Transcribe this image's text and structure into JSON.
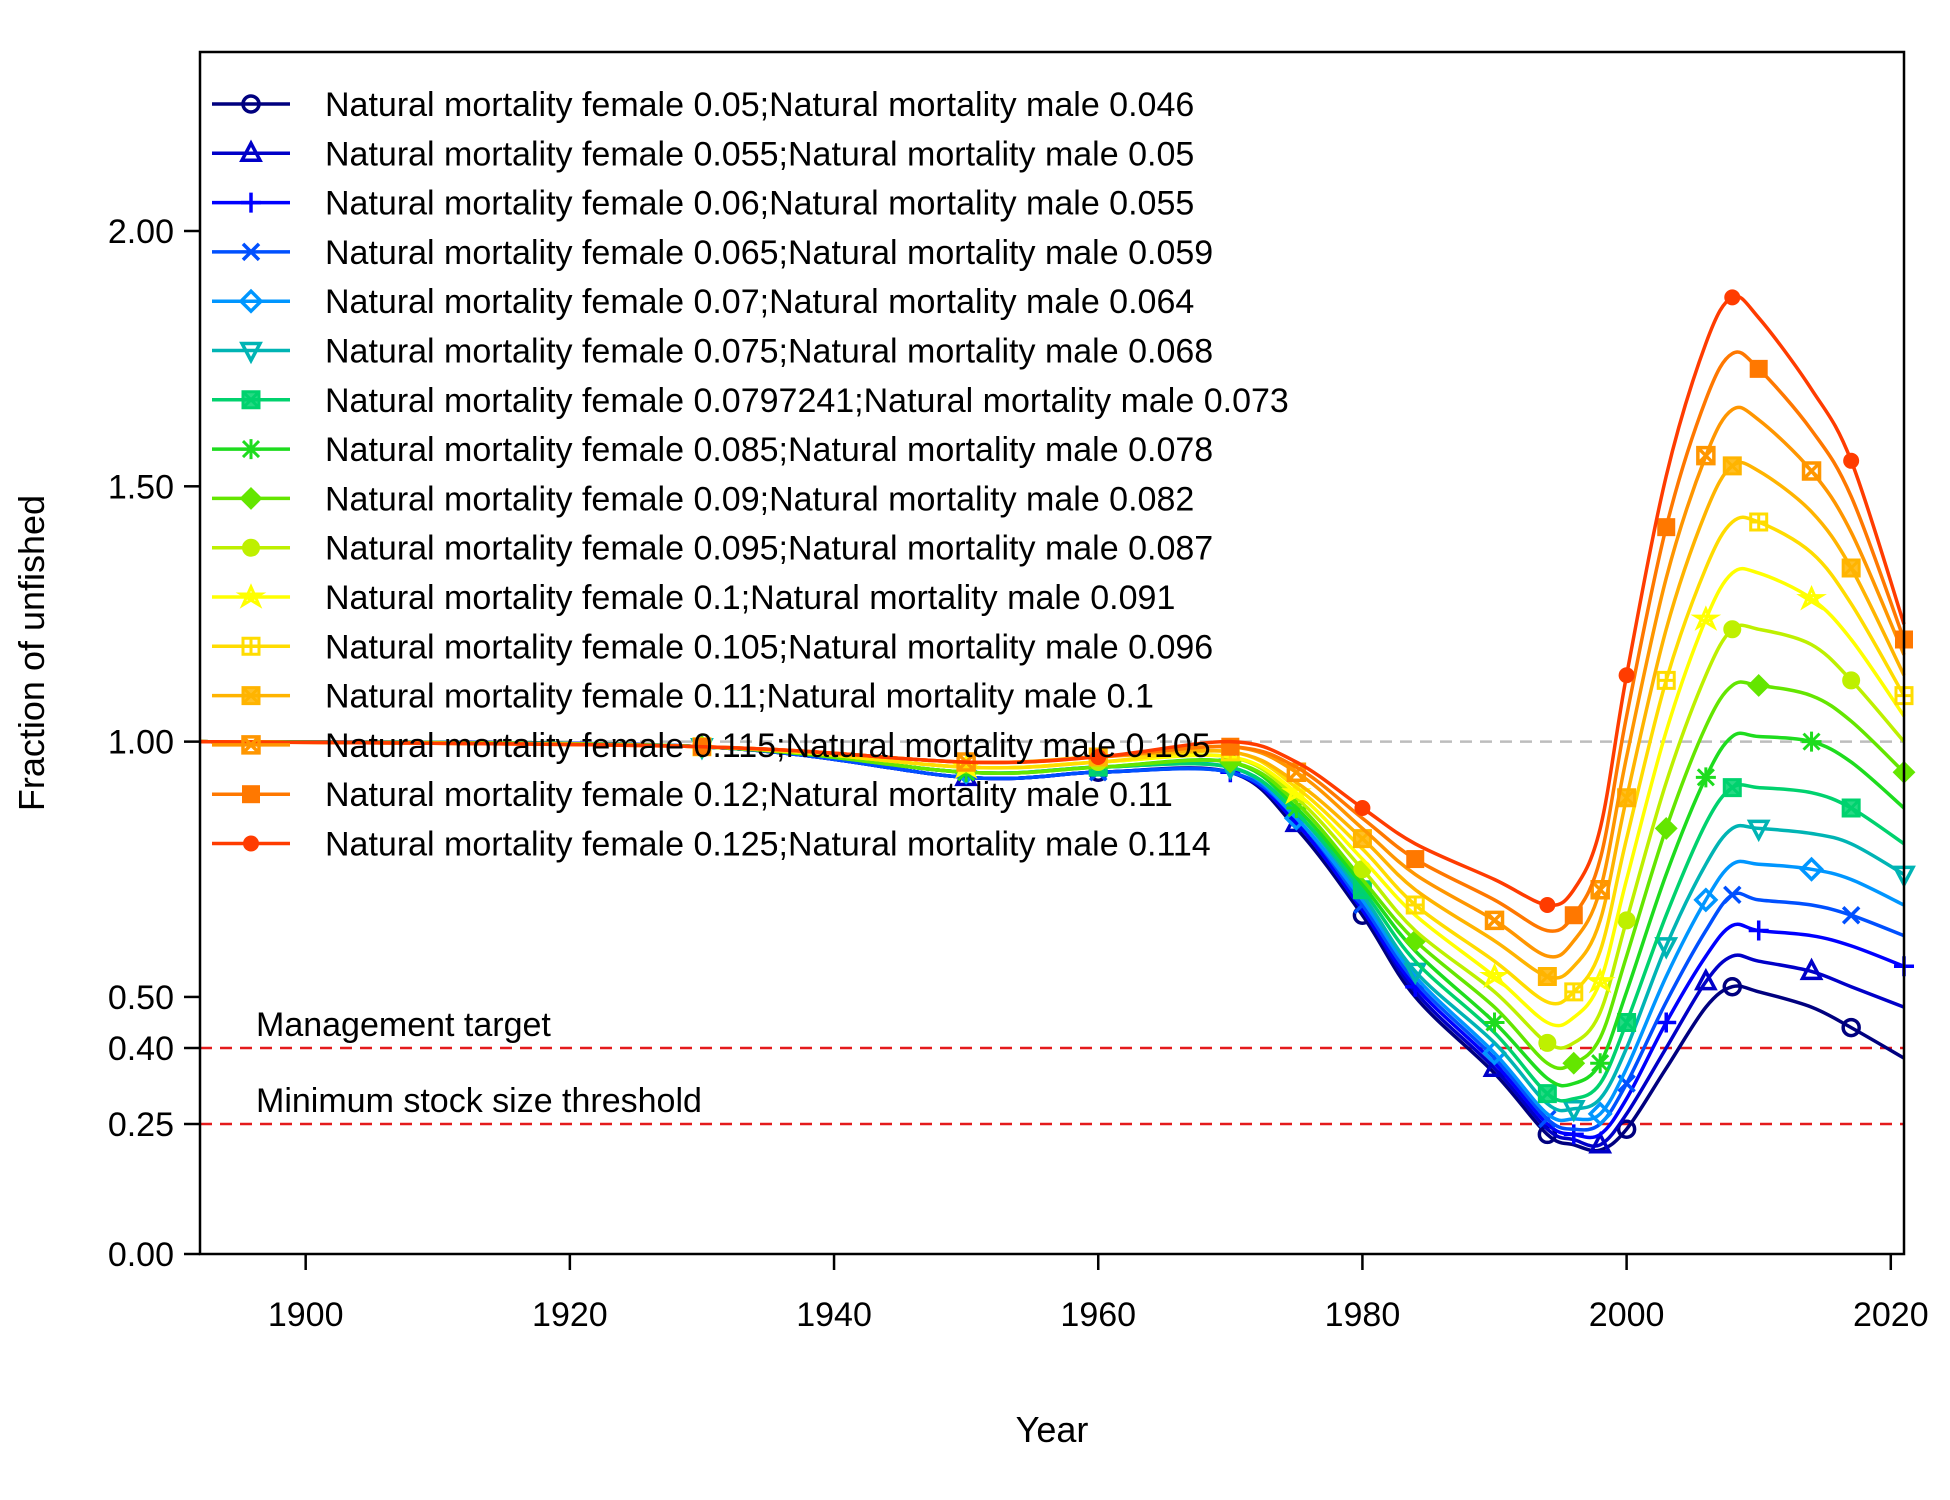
{
  "chart_data": {
    "type": "line",
    "xlabel": "Year",
    "ylabel": "Fraction of unfished",
    "xlim": [
      1892,
      2021
    ],
    "ylim": [
      0,
      2.35
    ],
    "y_scale": "piecewise: 0-0.25, 0.25-0.4, 0.4-2.35 (axis compressed near bottom)",
    "x_ticks": [
      "1900",
      "1920",
      "1940",
      "1960",
      "1980",
      "2000",
      "2020"
    ],
    "y_ticks": [
      "0.00",
      "0.25",
      "0.40",
      "0.50",
      "1.00",
      "1.50",
      "2.00"
    ],
    "grid": false,
    "legend": "top-left",
    "x": [
      1892,
      1930,
      1950,
      1960,
      1970,
      1975,
      1980,
      1984,
      1990,
      1994,
      1996,
      1998,
      2000,
      2003,
      2006,
      2008,
      2010,
      2014,
      2017,
      2021
    ],
    "reference_lines": [
      {
        "name": "Unfished",
        "value": 1.0,
        "color": "#bdbdbd",
        "label": ""
      },
      {
        "name": "Management target",
        "value": 0.4,
        "color": "#e41a1c",
        "label": "Management target"
      },
      {
        "name": "Minimum stock size threshold",
        "value": 0.25,
        "color": "#e41a1c",
        "label": "Minimum stock size threshold"
      }
    ],
    "series": [
      {
        "name": "Natural mortality female 0.05;Natural mortality male 0.046",
        "color": "#00007f",
        "marker": "circle",
        "values": [
          1.0,
          0.99,
          0.93,
          0.94,
          0.94,
          0.83,
          0.66,
          0.5,
          0.35,
          0.23,
          0.21,
          0.2,
          0.24,
          0.36,
          0.48,
          0.52,
          0.51,
          0.48,
          0.44,
          0.38
        ]
      },
      {
        "name": "Natural mortality female 0.055;Natural mortality male 0.05",
        "color": "#0000c8",
        "marker": "triangle-up",
        "values": [
          1.0,
          0.99,
          0.93,
          0.94,
          0.94,
          0.84,
          0.67,
          0.51,
          0.36,
          0.24,
          0.22,
          0.21,
          0.27,
          0.4,
          0.53,
          0.58,
          0.57,
          0.55,
          0.52,
          0.48
        ]
      },
      {
        "name": "Natural mortality female 0.06;Natural mortality male 0.055",
        "color": "#0000ff",
        "marker": "plus",
        "values": [
          1.0,
          0.99,
          0.93,
          0.94,
          0.94,
          0.84,
          0.67,
          0.52,
          0.37,
          0.25,
          0.23,
          0.23,
          0.3,
          0.45,
          0.58,
          0.64,
          0.63,
          0.62,
          0.6,
          0.56
        ]
      },
      {
        "name": "Natural mortality female 0.065;Natural mortality male 0.059",
        "color": "#0050ff",
        "marker": "cross",
        "values": [
          1.0,
          0.99,
          0.93,
          0.94,
          0.94,
          0.85,
          0.68,
          0.53,
          0.38,
          0.26,
          0.24,
          0.25,
          0.33,
          0.49,
          0.63,
          0.7,
          0.69,
          0.68,
          0.66,
          0.62
        ]
      },
      {
        "name": "Natural mortality female 0.07;Natural mortality male 0.064",
        "color": "#0096ff",
        "marker": "diamond",
        "values": [
          1.0,
          0.99,
          0.94,
          0.95,
          0.95,
          0.85,
          0.69,
          0.54,
          0.39,
          0.27,
          0.26,
          0.27,
          0.36,
          0.54,
          0.69,
          0.76,
          0.76,
          0.75,
          0.73,
          0.68
        ]
      },
      {
        "name": "Natural mortality female 0.075;Natural mortality male 0.068",
        "color": "#00b4b4",
        "marker": "triangle-down",
        "values": [
          1.0,
          0.99,
          0.94,
          0.95,
          0.95,
          0.86,
          0.7,
          0.55,
          0.41,
          0.29,
          0.28,
          0.3,
          0.4,
          0.6,
          0.76,
          0.83,
          0.83,
          0.82,
          0.8,
          0.74
        ]
      },
      {
        "name": "Natural mortality female 0.0797241;Natural mortality male 0.073",
        "color": "#00d26e",
        "marker": "square-x",
        "values": [
          1.0,
          0.99,
          0.94,
          0.95,
          0.95,
          0.86,
          0.71,
          0.57,
          0.43,
          0.31,
          0.3,
          0.33,
          0.45,
          0.66,
          0.84,
          0.91,
          0.91,
          0.9,
          0.87,
          0.8
        ]
      },
      {
        "name": "Natural mortality female 0.085;Natural mortality male 0.078",
        "color": "#1edc1e",
        "marker": "asterisk",
        "values": [
          1.0,
          0.99,
          0.94,
          0.95,
          0.96,
          0.87,
          0.72,
          0.59,
          0.45,
          0.34,
          0.33,
          0.37,
          0.51,
          0.74,
          0.93,
          1.01,
          1.01,
          1.0,
          0.96,
          0.87
        ]
      },
      {
        "name": "Natural mortality female 0.09;Natural mortality male 0.082",
        "color": "#64e600",
        "marker": "diamond-plus",
        "values": [
          1.0,
          0.99,
          0.94,
          0.95,
          0.96,
          0.88,
          0.73,
          0.61,
          0.48,
          0.37,
          0.37,
          0.42,
          0.58,
          0.83,
          1.03,
          1.11,
          1.11,
          1.09,
          1.04,
          0.94
        ]
      },
      {
        "name": "Natural mortality female 0.095;Natural mortality male 0.087",
        "color": "#bef000",
        "marker": "circle-plus",
        "values": [
          1.0,
          0.99,
          0.95,
          0.96,
          0.97,
          0.89,
          0.75,
          0.63,
          0.51,
          0.41,
          0.41,
          0.47,
          0.65,
          0.92,
          1.13,
          1.22,
          1.22,
          1.19,
          1.12,
          1.0
        ]
      },
      {
        "name": "Natural mortality female 0.1;Natural mortality male 0.091",
        "color": "#ffff00",
        "marker": "star",
        "values": [
          1.0,
          0.99,
          0.95,
          0.96,
          0.97,
          0.9,
          0.77,
          0.66,
          0.54,
          0.45,
          0.46,
          0.53,
          0.73,
          1.02,
          1.24,
          1.33,
          1.33,
          1.28,
          1.2,
          1.05
        ]
      },
      {
        "name": "Natural mortality female 0.105;Natural mortality male 0.096",
        "color": "#ffdc00",
        "marker": "square-plus",
        "values": [
          1.0,
          0.99,
          0.95,
          0.96,
          0.98,
          0.91,
          0.79,
          0.68,
          0.57,
          0.49,
          0.51,
          0.59,
          0.81,
          1.12,
          1.34,
          1.43,
          1.43,
          1.37,
          1.27,
          1.09
        ]
      },
      {
        "name": "Natural mortality female 0.11;Natural mortality male 0.1",
        "color": "#ffb400",
        "marker": "square-x",
        "values": [
          1.0,
          0.99,
          0.96,
          0.97,
          0.98,
          0.92,
          0.81,
          0.71,
          0.61,
          0.54,
          0.56,
          0.65,
          0.89,
          1.22,
          1.45,
          1.54,
          1.53,
          1.45,
          1.34,
          1.13
        ]
      },
      {
        "name": "Natural mortality female 0.115;Natural mortality male 0.105",
        "color": "#ff9600",
        "marker": "square-cross",
        "values": [
          1.0,
          0.99,
          0.96,
          0.97,
          0.99,
          0.94,
          0.83,
          0.74,
          0.65,
          0.58,
          0.61,
          0.71,
          0.97,
          1.32,
          1.56,
          1.65,
          1.63,
          1.53,
          1.41,
          1.17
        ]
      },
      {
        "name": "Natural mortality female 0.12;Natural mortality male 0.11",
        "color": "#ff7800",
        "marker": "square",
        "values": [
          1.0,
          0.99,
          0.96,
          0.97,
          0.99,
          0.95,
          0.85,
          0.77,
          0.69,
          0.63,
          0.66,
          0.77,
          1.05,
          1.42,
          1.67,
          1.76,
          1.73,
          1.61,
          1.48,
          1.2
        ]
      },
      {
        "name": "Natural mortality female 0.125;Natural mortality male 0.114",
        "color": "#ff3c00",
        "marker": "dot",
        "values": [
          1.0,
          0.99,
          0.96,
          0.97,
          1.0,
          0.96,
          0.87,
          0.8,
          0.73,
          0.68,
          0.71,
          0.83,
          1.13,
          1.52,
          1.78,
          1.87,
          1.83,
          1.69,
          1.55,
          1.23
        ]
      }
    ]
  }
}
